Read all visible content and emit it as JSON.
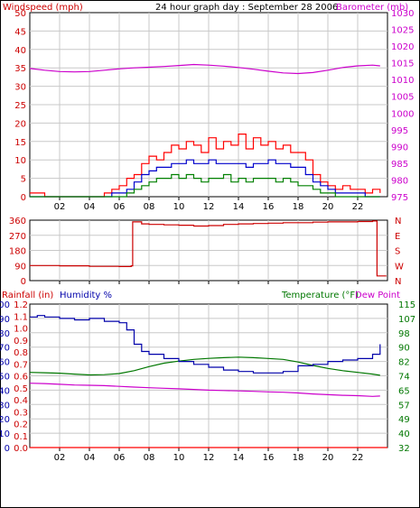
{
  "header": {
    "title": "24 hour graph day : September 28 2006",
    "left_label": "Windspeed (mph)",
    "right_label": "Barometer (mb)"
  },
  "panel3": {
    "rain_label": "Rainfall (in)",
    "humidity_label": "Humidity %",
    "temp_label": "Temperature (°F)",
    "dew_label": "Dew Point"
  },
  "colors": {
    "wind_gust": "#ff0000",
    "wind_avg": "#0000cc",
    "wind_low": "#008000",
    "barometer": "#cc00cc",
    "direction": "#cc0000",
    "humidity": "#0000aa",
    "temperature": "#007700",
    "dewpoint": "#cc00cc",
    "rain": "#ff0000",
    "grid": "#c8c8c8"
  },
  "chart_data": [
    {
      "type": "line",
      "name": "wind-barometer",
      "x_ticks": [
        "02",
        "04",
        "06",
        "08",
        "10",
        "12",
        "14",
        "16",
        "18",
        "20",
        "22"
      ],
      "x_range": [
        0,
        24
      ],
      "y_left": {
        "label": "Windspeed (mph)",
        "ylim": [
          0,
          50
        ],
        "ticks": [
          "0",
          "5",
          "10",
          "15",
          "20",
          "25",
          "30",
          "35",
          "40",
          "45",
          "50"
        ]
      },
      "y_right": {
        "label": "Barometer (mb)",
        "ylim": [
          975,
          1030
        ],
        "ticks": [
          "975",
          "980",
          "985",
          "990",
          "995",
          "1000",
          "1005",
          "1010",
          "1015",
          "1020",
          "1025",
          "1030"
        ]
      },
      "series": [
        {
          "key": "gust",
          "x": [
            0,
            1,
            2,
            3,
            4,
            5,
            5.5,
            6,
            6.5,
            7,
            7.5,
            8,
            8.5,
            9,
            9.5,
            10,
            10.5,
            11,
            11.5,
            12,
            12.5,
            13,
            13.5,
            14,
            14.5,
            15,
            15.5,
            16,
            16.5,
            17,
            17.5,
            18,
            18.5,
            19,
            19.5,
            20,
            20.5,
            21,
            21.5,
            22,
            22.5,
            23,
            23.5
          ],
          "values": [
            1,
            0,
            0,
            0,
            0,
            1,
            2,
            3,
            5,
            6,
            9,
            11,
            10,
            12,
            14,
            13,
            15,
            14,
            12,
            16,
            13,
            15,
            14,
            17,
            13,
            16,
            14,
            15,
            13,
            14,
            12,
            12,
            10,
            6,
            4,
            3,
            2,
            3,
            2,
            2,
            1,
            2,
            1
          ]
        },
        {
          "key": "avg",
          "x": [
            0,
            1,
            2,
            3,
            4,
            5,
            5.5,
            6,
            6.5,
            7,
            7.5,
            8,
            8.5,
            9,
            9.5,
            10,
            10.5,
            11,
            11.5,
            12,
            12.5,
            13,
            13.5,
            14,
            14.5,
            15,
            15.5,
            16,
            16.5,
            17,
            17.5,
            18,
            18.5,
            19,
            19.5,
            20,
            20.5,
            21,
            21.5,
            22,
            22.5,
            23,
            23.5
          ],
          "values": [
            0,
            0,
            0,
            0,
            0,
            0,
            1,
            1,
            2,
            4,
            6,
            7,
            8,
            8,
            9,
            9,
            10,
            9,
            9,
            10,
            9,
            9,
            9,
            9,
            8,
            9,
            9,
            10,
            9,
            9,
            8,
            8,
            6,
            4,
            3,
            2,
            1,
            1,
            1,
            1,
            0,
            0,
            0
          ]
        },
        {
          "key": "low",
          "x": [
            0,
            1,
            2,
            3,
            4,
            5,
            5.5,
            6,
            6.5,
            7,
            7.5,
            8,
            8.5,
            9,
            9.5,
            10,
            10.5,
            11,
            11.5,
            12,
            12.5,
            13,
            13.5,
            14,
            14.5,
            15,
            15.5,
            16,
            16.5,
            17,
            17.5,
            18,
            18.5,
            19,
            19.5,
            20,
            20.5,
            21,
            21.5,
            22,
            22.5,
            23,
            23.5
          ],
          "values": [
            0,
            0,
            0,
            0,
            0,
            0,
            0,
            0,
            1,
            2,
            3,
            4,
            5,
            5,
            6,
            5,
            6,
            5,
            4,
            5,
            5,
            6,
            4,
            5,
            4,
            5,
            5,
            5,
            4,
            5,
            4,
            3,
            3,
            2,
            1,
            1,
            0,
            0,
            0,
            0,
            0,
            0,
            0
          ]
        },
        {
          "key": "baro",
          "x": [
            0,
            1,
            2,
            3,
            4,
            5,
            6,
            7,
            8,
            9,
            10,
            11,
            12,
            13,
            14,
            15,
            16,
            17,
            18,
            19,
            20,
            21,
            22,
            23,
            23.5
          ],
          "values": [
            1013.3,
            1012.8,
            1012.4,
            1012.3,
            1012.4,
            1012.8,
            1013.2,
            1013.5,
            1013.7,
            1013.9,
            1014.2,
            1014.5,
            1014.3,
            1014.0,
            1013.6,
            1013.1,
            1012.5,
            1012.0,
            1011.8,
            1012.1,
            1012.8,
            1013.6,
            1014.1,
            1014.3,
            1014.1
          ]
        }
      ]
    },
    {
      "type": "line",
      "name": "wind-direction",
      "x_range": [
        0,
        24
      ],
      "y_left": {
        "ylim": [
          0,
          360
        ],
        "ticks": [
          "0",
          "90",
          "180",
          "270",
          "360"
        ]
      },
      "y_right": {
        "ticks": [
          "N",
          "W",
          "S",
          "E",
          "N"
        ]
      },
      "series": [
        {
          "key": "dir",
          "x": [
            0,
            2,
            4,
            6,
            6.8,
            6.9,
            7.5,
            8,
            9,
            10,
            11,
            12,
            13,
            14,
            15,
            16,
            17,
            18,
            19,
            20,
            21,
            22,
            23,
            23.2,
            23.3,
            23.9
          ],
          "values": [
            90,
            88,
            85,
            84,
            88,
            350,
            338,
            335,
            332,
            330,
            325,
            328,
            335,
            338,
            340,
            342,
            345,
            345,
            348,
            350,
            350,
            352,
            355,
            355,
            28,
            30
          ]
        }
      ]
    },
    {
      "type": "line",
      "name": "rain-humidity-temp",
      "x_ticks": [
        "02",
        "04",
        "06",
        "08",
        "10",
        "12",
        "14",
        "16",
        "18",
        "20",
        "22"
      ],
      "x_range": [
        0,
        24
      ],
      "y_rain": {
        "label": "Rainfall (in)",
        "ylim": [
          0,
          1.2
        ],
        "ticks": [
          "0.0",
          "0.1",
          "0.2",
          "0.3",
          "0.4",
          "0.5",
          "0.6",
          "0.7",
          "0.8",
          "0.9",
          "1.0",
          "1.1",
          "1.2"
        ]
      },
      "y_humidity": {
        "label": "Humidity %",
        "ylim": [
          0,
          100
        ],
        "ticks": [
          "0",
          "10",
          "20",
          "30",
          "40",
          "50",
          "60",
          "70",
          "80",
          "90",
          "100"
        ]
      },
      "y_temp": {
        "label": "Temperature (°F)",
        "ylim": [
          32,
          115
        ],
        "ticks": [
          "32",
          "40",
          "49",
          "57",
          "65",
          "74",
          "82",
          "90",
          "98",
          "107",
          "115"
        ]
      },
      "series": [
        {
          "key": "humidity",
          "x": [
            0,
            0.5,
            1,
            2,
            3,
            4,
            5,
            5.5,
            6,
            6.5,
            7,
            7.5,
            8,
            9,
            10,
            11,
            12,
            13,
            14,
            15,
            16,
            17,
            18,
            19,
            20,
            21,
            22,
            23,
            23.5
          ],
          "values": [
            91,
            92,
            91,
            90,
            89,
            90,
            88,
            88,
            87,
            82,
            72,
            67,
            65,
            62,
            60,
            58,
            56,
            54,
            53,
            52,
            52,
            53,
            57,
            58,
            60,
            61,
            62,
            65,
            72
          ]
        },
        {
          "key": "temperature",
          "x": [
            0,
            1,
            2,
            3,
            4,
            5,
            6,
            7,
            8,
            9,
            10,
            11,
            12,
            13,
            14,
            15,
            16,
            17,
            18,
            19,
            20,
            21,
            22,
            23,
            23.5
          ],
          "values": [
            75.5,
            75.3,
            75.0,
            74.5,
            74.0,
            74.2,
            74.8,
            76.5,
            78.8,
            80.8,
            82.0,
            83.0,
            83.6,
            84.0,
            84.3,
            84.0,
            83.5,
            83.0,
            81.5,
            79.5,
            77.8,
            76.5,
            75.5,
            74.5,
            73.8
          ]
        },
        {
          "key": "dewpoint",
          "x": [
            0,
            1,
            2,
            3,
            4,
            5,
            6,
            7,
            8,
            9,
            10,
            11,
            12,
            13,
            14,
            15,
            16,
            17,
            18,
            19,
            20,
            21,
            22,
            23,
            23.5
          ],
          "values": [
            69.2,
            69.0,
            68.6,
            68.2,
            68.0,
            67.8,
            67.4,
            67.0,
            66.6,
            66.3,
            66.0,
            65.6,
            65.2,
            65.0,
            64.8,
            64.5,
            64.2,
            64.0,
            63.6,
            63.0,
            62.6,
            62.2,
            62.0,
            61.6,
            61.8
          ]
        },
        {
          "key": "rain",
          "x": [
            0,
            24
          ],
          "values": [
            0,
            0
          ]
        }
      ]
    }
  ]
}
